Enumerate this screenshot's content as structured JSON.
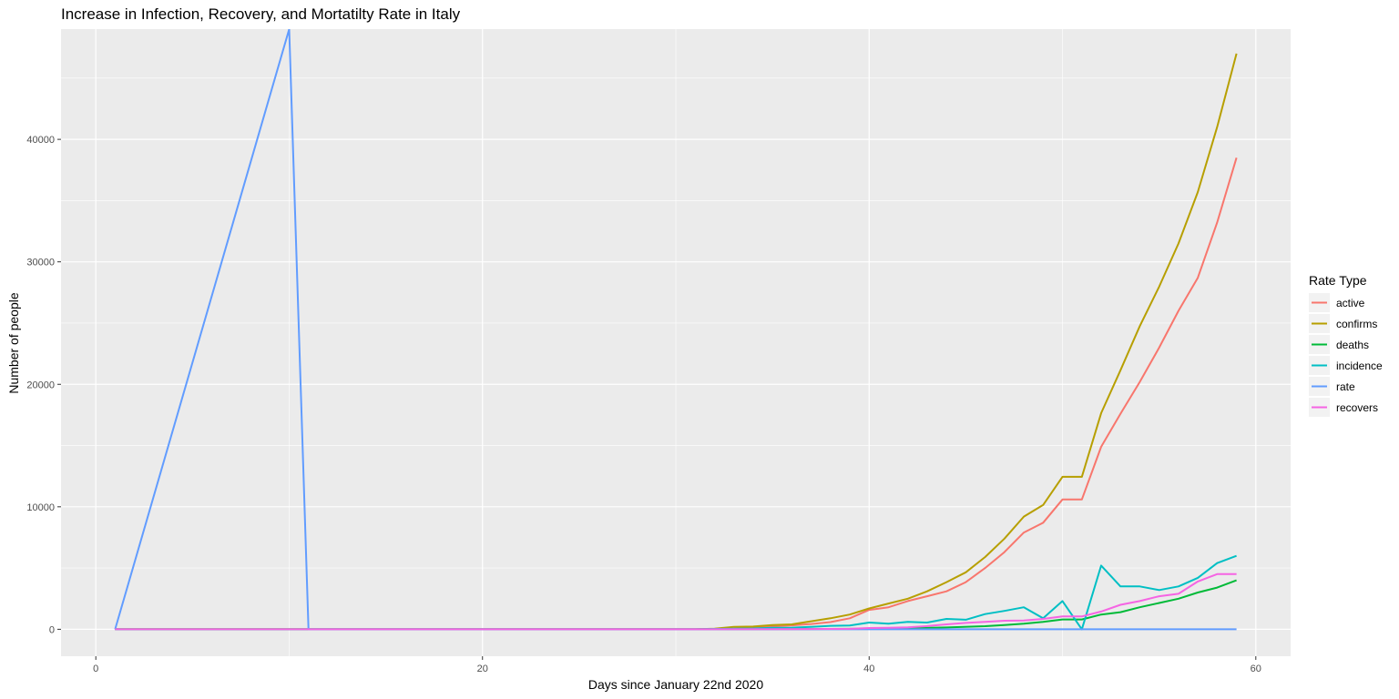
{
  "chart_data": {
    "type": "line",
    "title": "Increase in Infection, Recovery, and Mortatilty Rate in Italy",
    "xlabel": "Days since January 22nd 2020",
    "ylabel": "Number of people",
    "xlim": [
      -1.8,
      61.8
    ],
    "ylim": [
      -2200,
      49000
    ],
    "xticks": [
      0,
      20,
      40,
      60
    ],
    "yticks": [
      0,
      10000,
      20000,
      30000,
      40000
    ],
    "grid": true,
    "legend": {
      "title": "Rate Type",
      "position": "right"
    },
    "series": [
      {
        "name": "active",
        "color": "#F8766D",
        "x": [
          1,
          31,
          33,
          34,
          35,
          36,
          37,
          38,
          39,
          40,
          41,
          42,
          43,
          44,
          45,
          46,
          47,
          48,
          49,
          50,
          51,
          52,
          53,
          54,
          55,
          56,
          57,
          58,
          59
        ],
        "y": [
          0,
          0,
          50,
          130,
          230,
          320,
          430,
          590,
          900,
          1580,
          1800,
          2300,
          2700,
          3100,
          3850,
          5000,
          6300,
          7900,
          8700,
          10600,
          10600,
          14900,
          17600,
          20200,
          23000,
          26000,
          28700,
          33200,
          38500
        ]
      },
      {
        "name": "confirms",
        "color": "#B79F00",
        "x": [
          1,
          31,
          32,
          33,
          34,
          35,
          36,
          37,
          38,
          39,
          40,
          41,
          42,
          43,
          44,
          45,
          46,
          47,
          48,
          49,
          50,
          51,
          52,
          53,
          54,
          55,
          56,
          57,
          58,
          59
        ],
        "y": [
          0,
          0,
          50,
          200,
          220,
          350,
          400,
          650,
          900,
          1200,
          1700,
          2100,
          2500,
          3100,
          3850,
          4650,
          5900,
          7400,
          9200,
          10150,
          12450,
          12450,
          17650,
          21150,
          24750,
          27980,
          31500,
          35700,
          41000,
          47000
        ]
      },
      {
        "name": "deaths",
        "color": "#00BA38",
        "x": [
          1,
          31,
          35,
          38,
          40,
          42,
          44,
          46,
          47,
          48,
          49,
          50,
          51,
          52,
          53,
          54,
          55,
          56,
          57,
          58,
          59
        ],
        "y": [
          0,
          0,
          10,
          30,
          50,
          80,
          150,
          250,
          350,
          450,
          600,
          800,
          800,
          1200,
          1400,
          1800,
          2150,
          2500,
          3000,
          3400,
          4000
        ]
      },
      {
        "name": "incidence",
        "color": "#00BFC4",
        "x": [
          1,
          31,
          33,
          34,
          35,
          36,
          37,
          38,
          39,
          40,
          41,
          42,
          43,
          44,
          45,
          46,
          47,
          48,
          49,
          50,
          51,
          52,
          53,
          54,
          55,
          56,
          57,
          58,
          59
        ],
        "y": [
          0,
          0,
          50,
          70,
          120,
          130,
          200,
          280,
          310,
          550,
          450,
          600,
          550,
          850,
          780,
          1240,
          1500,
          1800,
          900,
          2300,
          0,
          5200,
          3500,
          3500,
          3200,
          3500,
          4200,
          5400,
          6000
        ]
      },
      {
        "name": "rate",
        "color": "#619CFF",
        "x": [
          1,
          10,
          11,
          59
        ],
        "y": [
          0,
          49000,
          0,
          0
        ]
      },
      {
        "name": "recovers",
        "color": "#F564E3",
        "x": [
          1,
          31,
          36,
          39,
          40,
          41,
          42,
          43,
          44,
          45,
          46,
          47,
          48,
          49,
          50,
          51,
          52,
          53,
          54,
          55,
          56,
          57,
          58,
          59
        ],
        "y": [
          0,
          0,
          10,
          40,
          100,
          120,
          160,
          260,
          400,
          520,
          600,
          700,
          720,
          850,
          1050,
          1050,
          1450,
          2000,
          2300,
          2700,
          2900,
          3900,
          4500,
          4500
        ]
      }
    ]
  }
}
